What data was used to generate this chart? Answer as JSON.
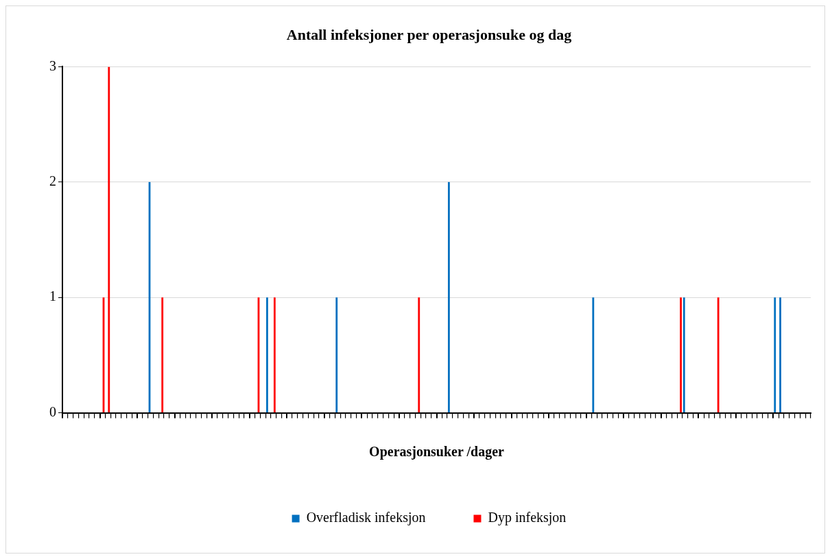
{
  "chart_data": {
    "type": "bar",
    "title": "Antall infeksjoner per operasjonsuke og dag",
    "xlabel": "Operasjonsuker /dager",
    "categories": [
      null,
      null,
      null,
      null,
      null,
      null,
      null,
      null,
      null,
      null,
      null,
      null,
      null,
      null,
      null,
      null,
      null,
      null,
      null,
      null,
      null,
      null,
      null,
      null,
      null,
      null,
      null,
      null,
      null,
      null,
      null,
      null,
      null,
      null,
      null,
      null,
      null,
      null,
      null,
      null,
      null,
      null,
      null,
      null,
      null,
      null,
      null,
      null,
      null,
      null,
      null,
      null,
      null,
      null,
      null,
      null,
      null,
      null,
      null,
      null,
      null,
      null,
      null,
      null,
      null,
      null,
      null,
      null,
      null,
      null,
      null,
      null,
      null,
      null,
      null,
      null,
      null,
      null,
      null,
      null,
      null,
      null,
      null,
      null,
      null,
      null,
      null,
      null,
      null,
      null,
      null,
      null,
      null,
      null,
      null,
      null,
      null,
      null,
      null,
      null,
      null,
      null,
      null,
      null,
      null,
      null,
      null,
      null,
      null,
      null,
      null,
      null,
      null,
      null,
      null,
      null,
      null,
      null,
      null,
      null,
      null,
      null,
      null,
      null,
      null,
      null,
      null,
      null,
      null,
      null,
      null,
      null,
      null,
      null,
      null,
      null,
      null,
      null,
      null,
      null
    ],
    "series": [
      {
        "name": "Overfladisk infeksjon",
        "color": "#0070c0",
        "values": [
          0,
          0,
          0,
          0,
          0,
          0,
          0,
          0,
          0,
          0,
          0,
          0,
          0,
          0,
          0,
          0,
          2,
          0,
          0,
          0,
          0,
          0,
          0,
          0,
          0,
          0,
          0,
          0,
          0,
          0,
          0,
          0,
          0,
          0,
          0,
          0,
          0,
          0,
          1,
          0,
          0,
          0,
          0,
          0,
          0,
          0,
          0,
          0,
          0,
          0,
          0,
          1,
          0,
          0,
          0,
          0,
          0,
          0,
          0,
          0,
          0,
          0,
          0,
          0,
          0,
          0,
          0,
          0,
          0,
          0,
          0,
          0,
          2,
          0,
          0,
          0,
          0,
          0,
          0,
          0,
          0,
          0,
          0,
          0,
          0,
          0,
          0,
          0,
          0,
          0,
          0,
          0,
          0,
          0,
          0,
          0,
          0,
          0,
          0,
          1,
          0,
          0,
          0,
          0,
          0,
          0,
          0,
          0,
          0,
          0,
          0,
          0,
          0,
          0,
          0,
          0,
          1,
          0,
          0,
          0,
          0,
          0,
          0,
          0,
          0,
          0,
          0,
          0,
          0,
          0,
          0,
          0,
          0,
          1,
          1,
          0,
          0,
          0,
          0,
          0
        ]
      },
      {
        "name": "Dyp infeksjon",
        "color": "#ff0000",
        "values": [
          0,
          0,
          0,
          0,
          0,
          0,
          0,
          1,
          3,
          0,
          0,
          0,
          0,
          0,
          0,
          0,
          0,
          0,
          1,
          0,
          0,
          0,
          0,
          0,
          0,
          0,
          0,
          0,
          0,
          0,
          0,
          0,
          0,
          0,
          0,
          0,
          1,
          0,
          0,
          1,
          0,
          0,
          0,
          0,
          0,
          0,
          0,
          0,
          0,
          0,
          0,
          0,
          0,
          0,
          0,
          0,
          0,
          0,
          0,
          0,
          0,
          0,
          0,
          0,
          0,
          0,
          1,
          0,
          0,
          0,
          0,
          0,
          0,
          0,
          0,
          0,
          0,
          0,
          0,
          0,
          0,
          0,
          0,
          0,
          0,
          0,
          0,
          0,
          0,
          0,
          0,
          0,
          0,
          0,
          0,
          0,
          0,
          0,
          0,
          0,
          0,
          0,
          0,
          0,
          0,
          0,
          0,
          0,
          0,
          0,
          0,
          0,
          0,
          0,
          0,
          1,
          0,
          0,
          0,
          0,
          0,
          0,
          1,
          0,
          0,
          0,
          0,
          0,
          0,
          0,
          0,
          0,
          0,
          0,
          0,
          0,
          0,
          0,
          0,
          0
        ]
      }
    ],
    "ylim": [
      0,
      3
    ],
    "yticks": [
      0,
      1,
      2,
      3
    ],
    "grid": "y",
    "legend": "bottom"
  }
}
